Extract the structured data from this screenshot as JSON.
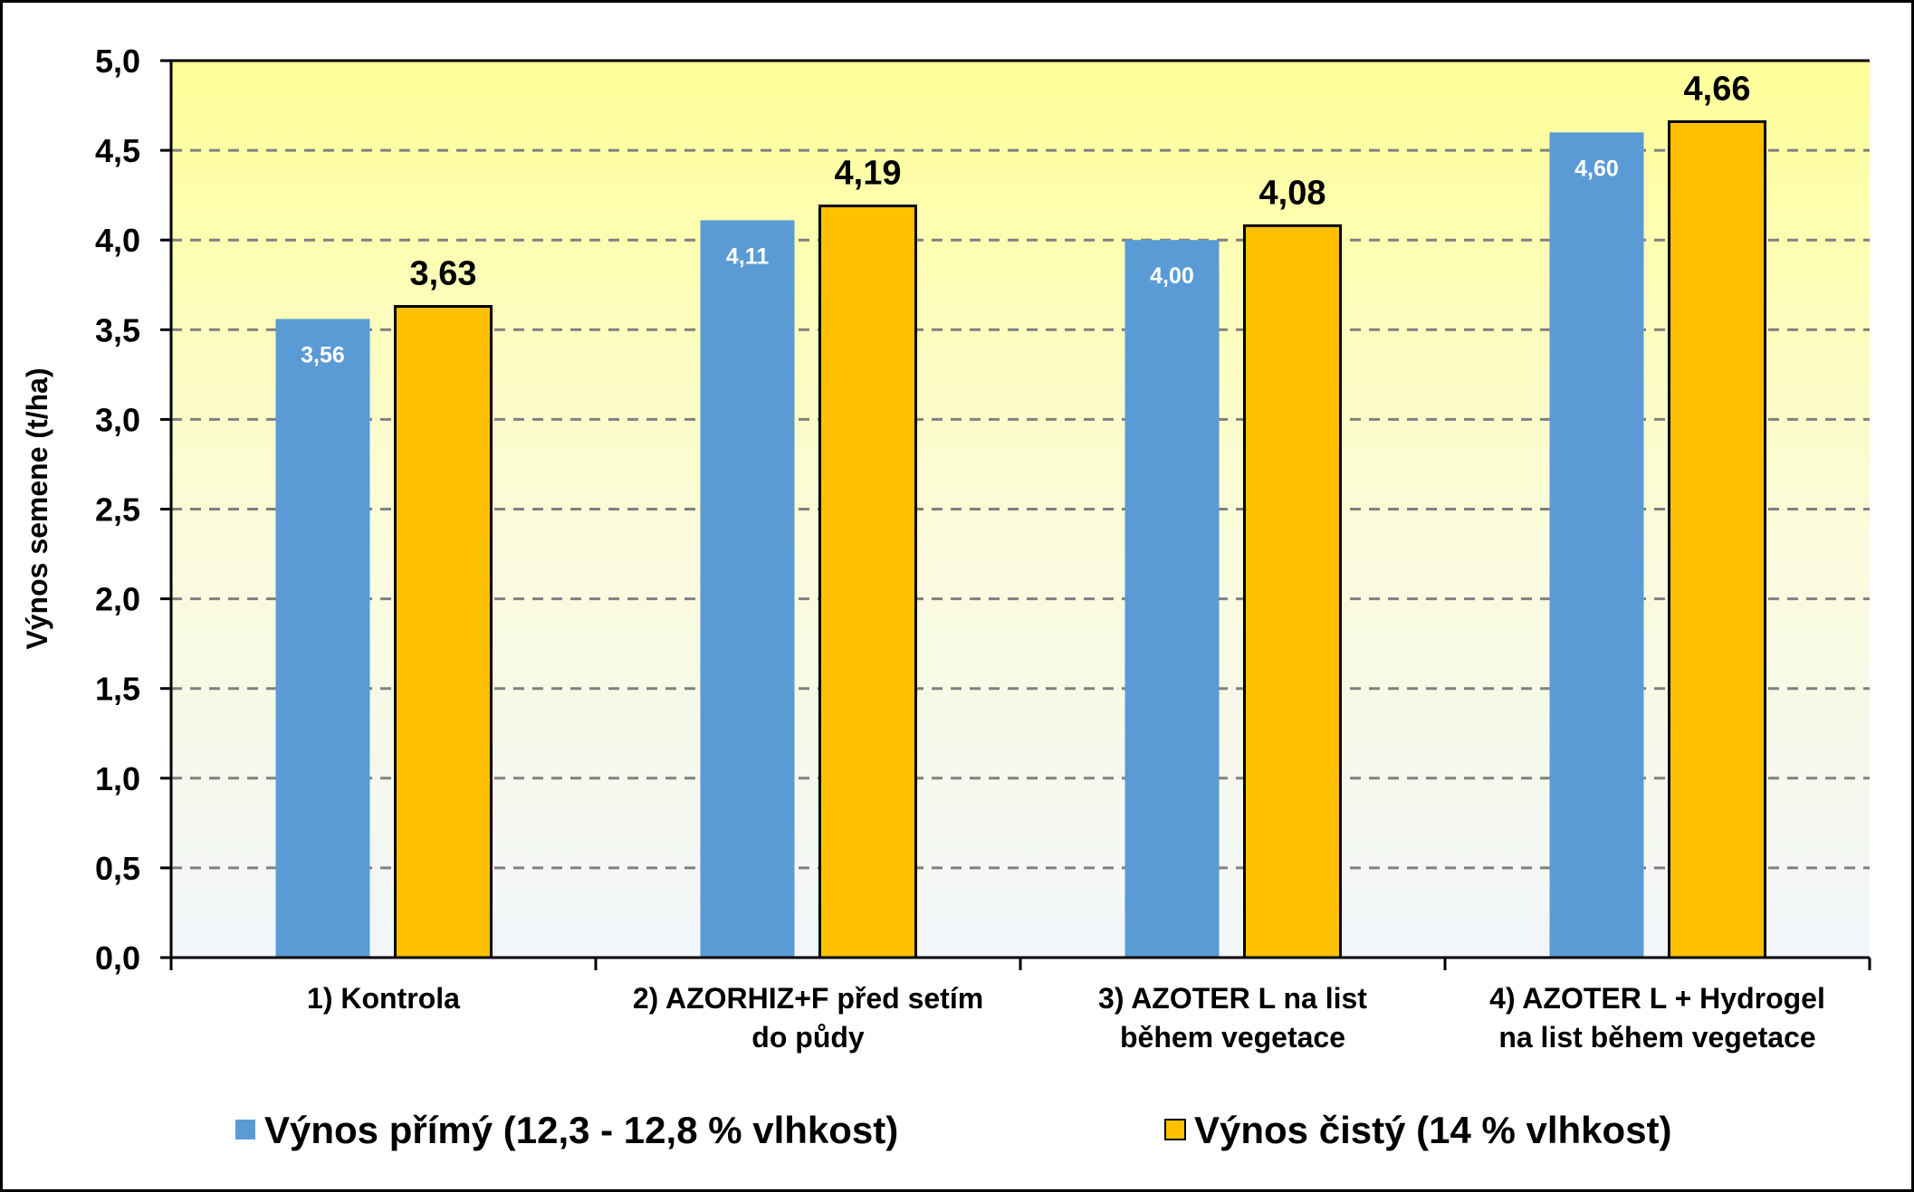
{
  "chart_data": {
    "type": "bar",
    "title": "",
    "xlabel": "",
    "ylabel": "Výnos semene (t/ha)",
    "ylim": [
      0,
      5
    ],
    "yticks": [
      "0,0",
      "0,5",
      "1,0",
      "1,5",
      "2,0",
      "2,5",
      "3,0",
      "3,5",
      "4,0",
      "4,5",
      "5,0"
    ],
    "grid": true,
    "legend_position": "bottom",
    "categories": [
      [
        "1) Kontrola"
      ],
      [
        "2) AZORHIZ+F před setím",
        "do půdy"
      ],
      [
        "3) AZOTER L na list",
        "během vegetace"
      ],
      [
        "4) AZOTER L + Hydrogel",
        "na list během vegetace"
      ]
    ],
    "series": [
      {
        "name": "Výnos přímý (12,3 - 12,8 % vlhkost)",
        "color": "#5B9BD5",
        "values": [
          3.56,
          4.11,
          4.0,
          4.6
        ],
        "labels": [
          "3,56",
          "4,11",
          "4,00",
          "4,60"
        ]
      },
      {
        "name": "Výnos čistý (14 % vlhkost)",
        "color": "#FFC000",
        "values": [
          3.63,
          4.19,
          4.08,
          4.66
        ],
        "labels": [
          "3,63",
          "4,19",
          "4,08",
          "4,66"
        ]
      }
    ]
  }
}
